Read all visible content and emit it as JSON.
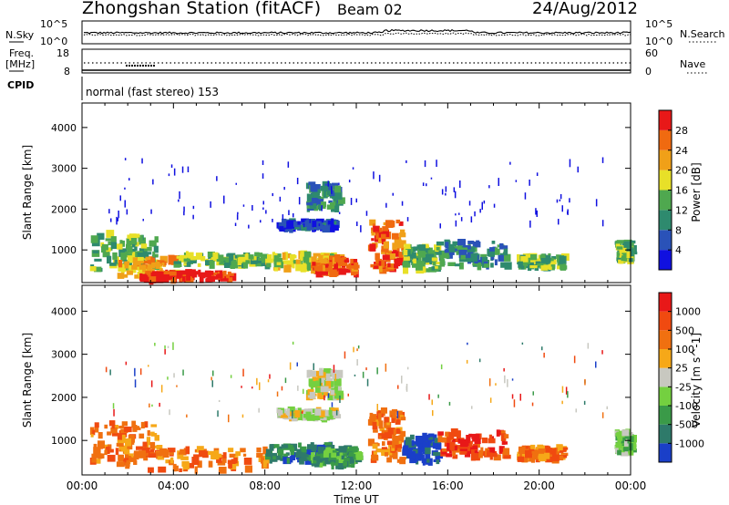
{
  "header": {
    "station_title": "Zhongshan Station (fitACF)",
    "beam_title": "Beam 02",
    "date": "24/Aug/2012"
  },
  "top_panel": {
    "left_label": "N.Sky",
    "left_ticks": [
      "10^5",
      "10^0"
    ],
    "right_label": "N.Search",
    "right_ticks": [
      "10^5",
      "10^0"
    ]
  },
  "freq_panel": {
    "left_label_1": "Freq.",
    "left_label_2": "[MHz]",
    "left_ticks": [
      "18",
      "8"
    ],
    "right_label": "Nave",
    "right_ticks": [
      "60",
      "0"
    ]
  },
  "cpid_panel": {
    "label": "CPID",
    "mode_text": "normal (fast stereo) 153"
  },
  "colors": {
    "axis": "#000000",
    "background": "#ffffff"
  },
  "chart_data": [
    {
      "type": "heatmap",
      "quantity": "Power",
      "ylabel": "Slant Range [km]",
      "ylim": [
        200,
        4600
      ],
      "yticks": [
        1000,
        2000,
        3000,
        4000
      ],
      "xlim": [
        0,
        24
      ],
      "colorbar_label": "Power [dB]",
      "colorbar_ticks": [
        "28",
        "24",
        "20",
        "16",
        "12",
        "8",
        "4"
      ],
      "colorscale": [
        "#1010e0",
        "#2a52b8",
        "#2e8a6e",
        "#4fa84f",
        "#e8e028",
        "#f0a018",
        "#f06a10",
        "#e81818"
      ],
      "regions": [
        {
          "t": [
            0.3,
            3.3
          ],
          "r": [
            500,
            1400
          ],
          "level": 3
        },
        {
          "t": [
            1.5,
            4.0
          ],
          "r": [
            300,
            800
          ],
          "level": 5
        },
        {
          "t": [
            2.5,
            6.5
          ],
          "r": [
            250,
            450
          ],
          "level": 7
        },
        {
          "t": [
            4.0,
            8.0
          ],
          "r": [
            600,
            900
          ],
          "level": 3
        },
        {
          "t": [
            8.0,
            11.0
          ],
          "r": [
            500,
            900
          ],
          "level": 4
        },
        {
          "t": [
            10.0,
            12.0
          ],
          "r": [
            400,
            800
          ],
          "level": 6
        },
        {
          "t": [
            8.5,
            11.0
          ],
          "r": [
            1500,
            1700
          ],
          "level": 1
        },
        {
          "t": [
            9.8,
            11.2
          ],
          "r": [
            2000,
            2600
          ],
          "level": 2
        },
        {
          "t": [
            12.5,
            14.0
          ],
          "r": [
            500,
            1700
          ],
          "level": 6
        },
        {
          "t": [
            14.0,
            15.5
          ],
          "r": [
            500,
            1100
          ],
          "level": 3
        },
        {
          "t": [
            15.5,
            18.5
          ],
          "r": [
            600,
            1200
          ],
          "level": 2
        },
        {
          "t": [
            19.0,
            21.0
          ],
          "r": [
            550,
            850
          ],
          "level": 3
        },
        {
          "t": [
            23.3,
            24.0
          ],
          "r": [
            700,
            1200
          ],
          "level": 3
        }
      ]
    },
    {
      "type": "heatmap",
      "quantity": "Velocity",
      "xlabel": "Time UT",
      "ylabel": "Slant Range [km]",
      "ylim": [
        200,
        4600
      ],
      "yticks": [
        1000,
        2000,
        3000,
        4000
      ],
      "xlim": [
        0,
        24
      ],
      "xtick_labels": [
        "00:00",
        "04:00",
        "08:00",
        "12:00",
        "16:00",
        "20:00",
        "00:00"
      ],
      "colorbar_label": "Velocity [m s^-1]",
      "colorbar_ticks": [
        "1000",
        "500",
        "100",
        "25",
        "-25",
        "-100",
        "-500",
        "-1000"
      ],
      "colorscale": [
        "#1a3fc8",
        "#2e7a6a",
        "#3a9a48",
        "#74d040",
        "#c8c8c0",
        "#f6a818",
        "#f07010",
        "#f04a10",
        "#e81818"
      ],
      "regions": [
        {
          "t": [
            0.3,
            3.3
          ],
          "r": [
            500,
            1400
          ],
          "level": 6
        },
        {
          "t": [
            1.5,
            8.0
          ],
          "r": [
            300,
            800
          ],
          "level": 6
        },
        {
          "t": [
            8.0,
            11.0
          ],
          "r": [
            500,
            900
          ],
          "level": 1
        },
        {
          "t": [
            10.0,
            12.0
          ],
          "r": [
            400,
            800
          ],
          "level": 2
        },
        {
          "t": [
            8.5,
            11.0
          ],
          "r": [
            1500,
            1700
          ],
          "level": 4
        },
        {
          "t": [
            9.8,
            11.2
          ],
          "r": [
            2000,
            2600
          ],
          "level": 4
        },
        {
          "t": [
            12.5,
            14.0
          ],
          "r": [
            500,
            1700
          ],
          "level": 6
        },
        {
          "t": [
            14.0,
            15.5
          ],
          "r": [
            500,
            1100
          ],
          "level": 0
        },
        {
          "t": [
            15.5,
            18.5
          ],
          "r": [
            600,
            1200
          ],
          "level": 7
        },
        {
          "t": [
            19.0,
            21.0
          ],
          "r": [
            550,
            850
          ],
          "level": 6
        },
        {
          "t": [
            23.3,
            24.0
          ],
          "r": [
            700,
            1200
          ],
          "level": 3
        }
      ]
    }
  ]
}
